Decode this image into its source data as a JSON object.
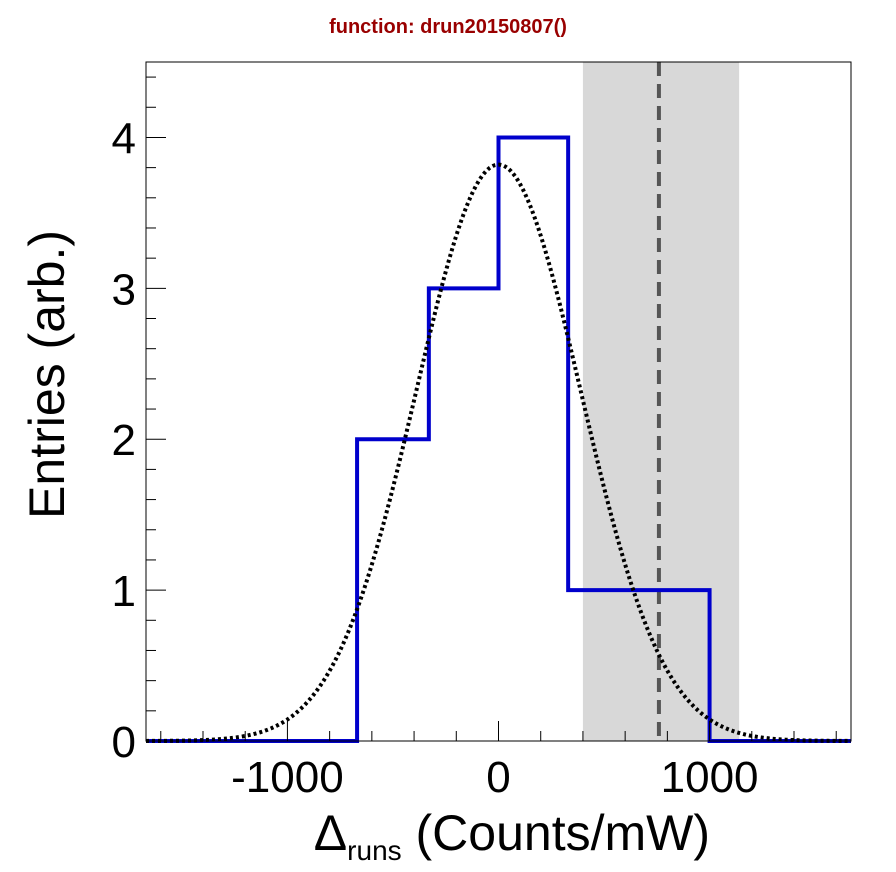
{
  "chart_data": {
    "type": "bar",
    "title": "function:  drun20150807()",
    "title_color": "#990000",
    "xlabel_symbol": "Δ",
    "xlabel_subscript": "runs",
    "xlabel_rest": " (Counts/mW)",
    "ylabel": "Entries (arb.)",
    "xlim": [
      -1670,
      1670
    ],
    "ylim": [
      0,
      4.5
    ],
    "x_ticks": [
      -1000,
      0,
      1000
    ],
    "x_tick_labels": [
      "-1000",
      "0",
      "1000"
    ],
    "y_ticks": [
      0,
      1,
      2,
      3,
      4
    ],
    "y_tick_labels": [
      "0",
      "1",
      "2",
      "3",
      "4"
    ],
    "histogram": {
      "name": "histogram",
      "color": "#0000cc",
      "bin_edges": [
        -670,
        -330,
        0,
        330,
        1000
      ],
      "counts": [
        2,
        3,
        4,
        1
      ]
    },
    "fit": {
      "name": "gaussian fit",
      "style": "dotted",
      "color": "#000000",
      "amplitude": 3.82,
      "mean": 0,
      "sigma": 390
    },
    "marker": {
      "name": "reference line",
      "value": 760,
      "color": "#555555",
      "style": "dashed",
      "band": [
        400,
        1140
      ],
      "band_color": "#b8b8b8"
    },
    "grid": false,
    "legend": "none"
  }
}
